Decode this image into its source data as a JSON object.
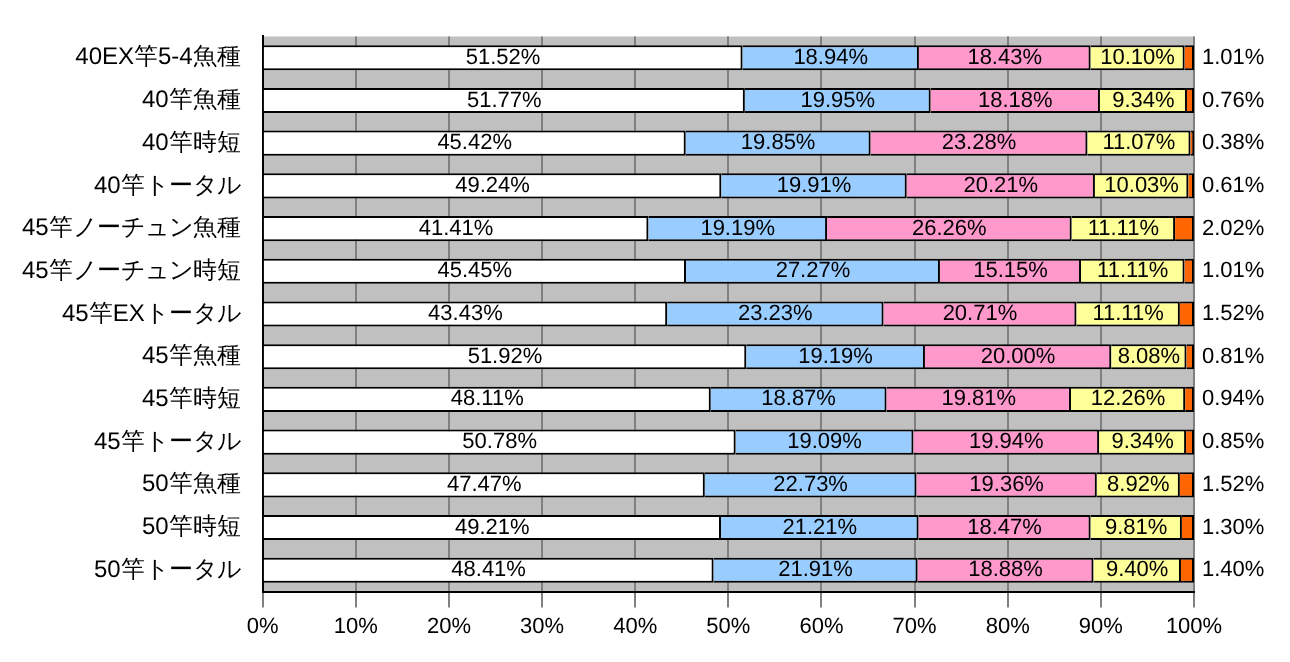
{
  "chart_data": {
    "type": "bar",
    "orientation": "horizontal",
    "stacked": true,
    "grid": "x",
    "categories": [
      "40EX竿5-4魚種",
      "40竿魚種",
      "40竿時短",
      "40竿トータル",
      "45竿ノーチュン魚種",
      "45竿ノーチュン時短",
      "45竿EXトータル",
      "45竿魚種",
      "45竿時短",
      "45竿トータル",
      "50竿魚種",
      "50竿時短",
      "50竿トータル"
    ],
    "xlim": [
      0,
      100
    ],
    "xticks": [
      {
        "value": 0,
        "label": "0%"
      },
      {
        "value": 10,
        "label": "10%"
      },
      {
        "value": 20,
        "label": "20%"
      },
      {
        "value": 30,
        "label": "30%"
      },
      {
        "value": 40,
        "label": "40%"
      },
      {
        "value": 50,
        "label": "50%"
      },
      {
        "value": 60,
        "label": "60%"
      },
      {
        "value": 70,
        "label": "70%"
      },
      {
        "value": 80,
        "label": "80%"
      },
      {
        "value": 90,
        "label": "90%"
      },
      {
        "value": 100,
        "label": "100%"
      }
    ],
    "series": [
      {
        "color": "#ffffff",
        "values": [
          51.52,
          51.77,
          45.42,
          49.24,
          41.41,
          45.45,
          43.43,
          51.92,
          48.11,
          50.78,
          47.47,
          49.21,
          48.41
        ],
        "value_labels": [
          "51.52%",
          "51.77%",
          "45.42%",
          "49.24%",
          "41.41%",
          "45.45%",
          "43.43%",
          "51.92%",
          "48.11%",
          "50.78%",
          "47.47%",
          "49.21%",
          "48.41%"
        ]
      },
      {
        "color": "#99ccff",
        "values": [
          18.94,
          19.95,
          19.85,
          19.91,
          19.19,
          27.27,
          23.23,
          19.19,
          18.87,
          19.09,
          22.73,
          21.21,
          21.91
        ],
        "value_labels": [
          "18.94%",
          "19.95%",
          "19.85%",
          "19.91%",
          "19.19%",
          "27.27%",
          "23.23%",
          "19.19%",
          "18.87%",
          "19.09%",
          "22.73%",
          "21.21%",
          "21.91%"
        ]
      },
      {
        "color": "#ff99cc",
        "values": [
          18.43,
          18.18,
          23.28,
          20.21,
          26.26,
          15.15,
          20.71,
          20.0,
          19.81,
          19.94,
          19.36,
          18.47,
          18.88
        ],
        "value_labels": [
          "18.43%",
          "18.18%",
          "23.28%",
          "20.21%",
          "26.26%",
          "15.15%",
          "20.71%",
          "20.00%",
          "19.81%",
          "19.94%",
          "19.36%",
          "18.47%",
          "18.88%"
        ]
      },
      {
        "color": "#ffff99",
        "values": [
          10.1,
          9.34,
          11.07,
          10.03,
          11.11,
          11.11,
          11.11,
          8.08,
          12.26,
          9.34,
          8.92,
          9.81,
          9.4
        ],
        "value_labels": [
          "10.10%",
          "9.34%",
          "11.07%",
          "10.03%",
          "11.11%",
          "11.11%",
          "11.11%",
          "8.08%",
          "12.26%",
          "9.34%",
          "8.92%",
          "9.81%",
          "9.40%"
        ]
      },
      {
        "color": "#ff6600",
        "values": [
          1.01,
          0.76,
          0.38,
          0.61,
          2.02,
          1.01,
          1.52,
          0.81,
          0.94,
          0.85,
          1.52,
          1.3,
          1.4
        ],
        "value_labels": [
          "1.01%",
          "0.76%",
          "0.38%",
          "0.61%",
          "2.02%",
          "1.01%",
          "1.52%",
          "0.81%",
          "0.94%",
          "0.85%",
          "1.52%",
          "1.30%",
          "1.40%"
        ]
      }
    ]
  }
}
